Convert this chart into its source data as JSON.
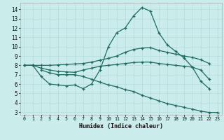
{
  "background_color": "#caecea",
  "grid_color": "#b8dede",
  "line_color": "#1a6b60",
  "xlabel": "Humidex (Indice chaleur)",
  "xlim": [
    -0.5,
    23.5
  ],
  "ylim": [
    2.7,
    14.7
  ],
  "yticks": [
    3,
    4,
    5,
    6,
    7,
    8,
    9,
    10,
    11,
    12,
    13,
    14
  ],
  "xticks": [
    0,
    1,
    2,
    3,
    4,
    5,
    6,
    7,
    8,
    9,
    10,
    11,
    12,
    13,
    14,
    15,
    16,
    17,
    18,
    19,
    20,
    21,
    22,
    23
  ],
  "curve1_x": [
    0,
    1,
    2,
    3,
    4,
    5,
    6,
    7,
    8,
    9,
    10,
    11,
    12,
    13,
    14,
    15,
    16,
    17,
    18,
    19,
    20,
    21,
    22
  ],
  "curve1_y": [
    8.0,
    8.0,
    6.8,
    6.0,
    5.9,
    5.8,
    5.9,
    5.5,
    6.0,
    7.5,
    10.0,
    11.5,
    12.0,
    13.3,
    14.2,
    13.8,
    11.5,
    10.2,
    9.5,
    8.8,
    7.8,
    6.3,
    5.5
  ],
  "curve2_x": [
    0,
    1,
    2,
    3,
    4,
    5,
    6,
    7,
    8,
    9,
    10,
    11,
    12,
    13,
    14,
    15,
    16,
    17,
    18,
    19,
    20,
    21,
    22
  ],
  "curve2_y": [
    8.0,
    8.0,
    8.0,
    8.0,
    8.05,
    8.1,
    8.15,
    8.2,
    8.35,
    8.55,
    8.75,
    9.0,
    9.4,
    9.7,
    9.85,
    9.9,
    9.6,
    9.4,
    9.2,
    9.0,
    8.85,
    8.6,
    8.2
  ],
  "curve3_x": [
    0,
    1,
    2,
    3,
    4,
    5,
    6,
    7,
    8,
    9,
    10,
    11,
    12,
    13,
    14,
    15,
    16,
    17,
    18,
    19,
    20,
    21,
    22
  ],
  "curve3_y": [
    8.0,
    8.0,
    7.7,
    7.5,
    7.35,
    7.3,
    7.25,
    7.5,
    7.7,
    7.9,
    8.0,
    8.1,
    8.2,
    8.3,
    8.35,
    8.35,
    8.2,
    8.1,
    8.0,
    7.9,
    7.8,
    7.5,
    6.5
  ],
  "curve4_x": [
    2,
    3,
    4,
    5,
    6,
    7,
    8,
    9,
    10,
    11,
    12,
    13,
    14,
    15,
    16,
    17,
    18,
    19,
    20,
    21,
    22,
    23
  ],
  "curve4_y": [
    7.5,
    7.2,
    7.0,
    7.0,
    7.0,
    6.8,
    6.5,
    6.2,
    5.9,
    5.7,
    5.4,
    5.2,
    4.8,
    4.5,
    4.2,
    3.9,
    3.7,
    3.5,
    3.3,
    3.1,
    2.95,
    2.95
  ]
}
